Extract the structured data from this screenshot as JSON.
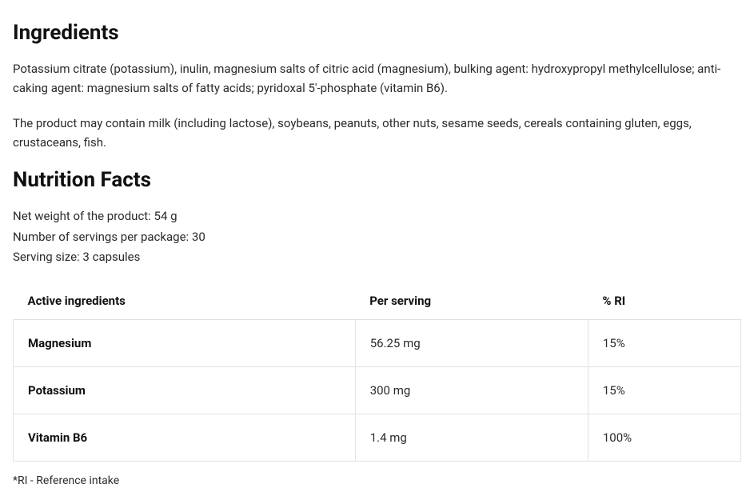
{
  "ingredients": {
    "heading": "Ingredients",
    "paragraph1": "Potassium citrate (potassium), inulin, magnesium salts of citric acid (magnesium), bulking agent: hydroxypropyl methylcellulose; anti-caking agent: magnesium salts of fatty acids; pyridoxal 5'-phosphate (vitamin B6).",
    "paragraph2": "The product may contain milk (including lactose), soybeans, peanuts, other nuts, sesame seeds, cereals containing gluten, eggs, crustaceans, fish."
  },
  "nutrition": {
    "heading": "Nutrition Facts",
    "net_weight": "Net weight of the product: 54 g",
    "servings": "Number of servings per package: 30",
    "serving_size": "Serving size: 3 capsules",
    "columns": {
      "c0": "Active ingredients",
      "c1": "Per serving",
      "c2": "% RI"
    },
    "rows": [
      {
        "name": "Magnesium",
        "per_serving": "56.25 mg",
        "ri": "15%"
      },
      {
        "name": "Potassium",
        "per_serving": "300 mg",
        "ri": "15%"
      },
      {
        "name": "Vitamin B6",
        "per_serving": "1.4 mg",
        "ri": "100%"
      }
    ],
    "footnote": "*RI - Reference intake"
  }
}
